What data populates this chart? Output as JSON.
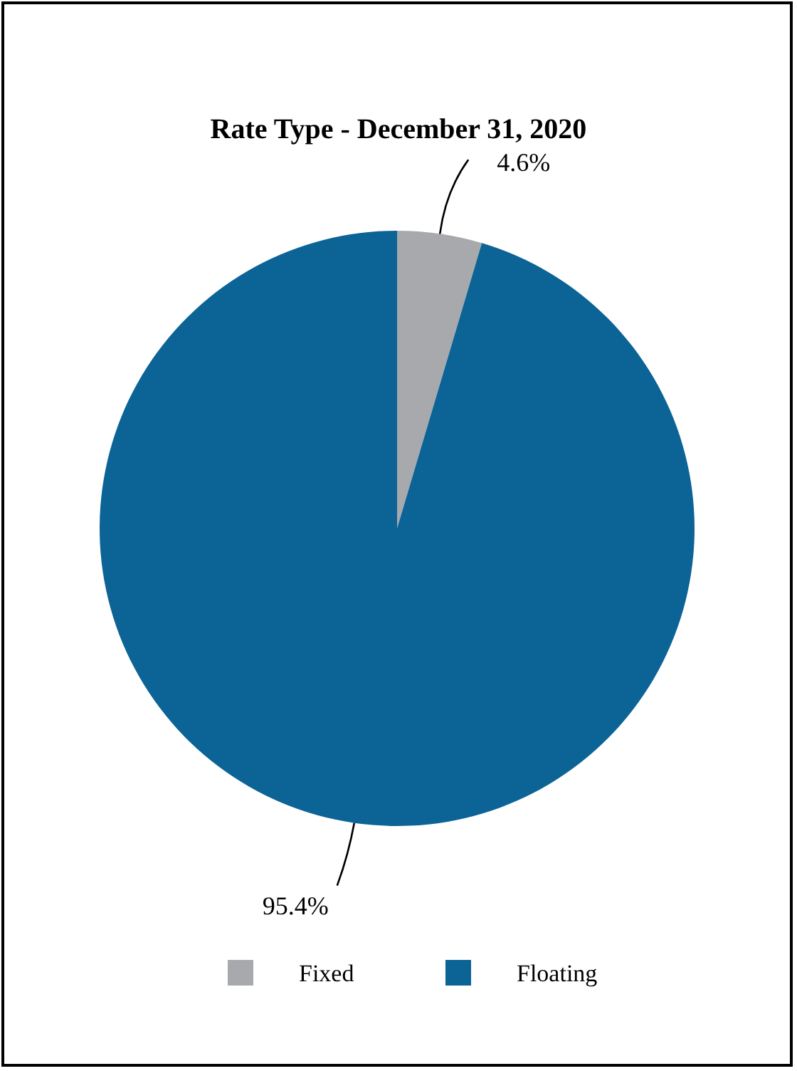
{
  "chart_data": {
    "type": "pie",
    "title": "Rate Type - December 31, 2020",
    "categories": [
      "Fixed",
      "Floating"
    ],
    "values": [
      4.6,
      95.4
    ],
    "colors": [
      "#a7a9ac",
      "#0b6396"
    ],
    "value_labels": [
      "4.6%",
      "95.4%"
    ],
    "legend": "bottom"
  }
}
